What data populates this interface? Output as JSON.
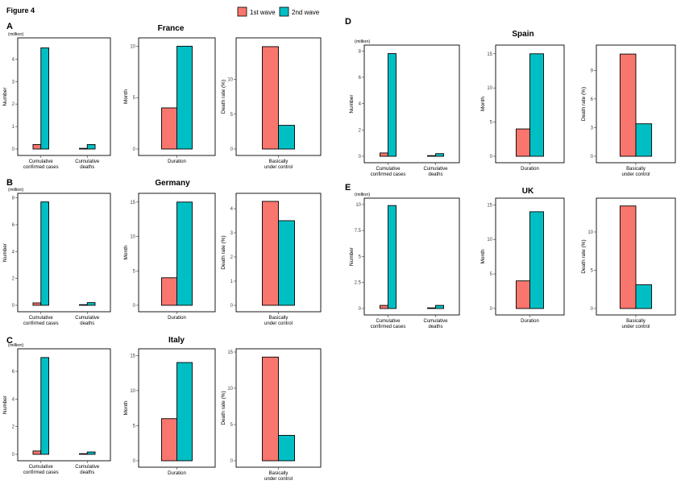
{
  "figure_title": "Figure 4",
  "legend": [
    {
      "label": "1st wave",
      "color": "#F8766D"
    },
    {
      "label": "2nd wave",
      "color": "#00BFC4"
    }
  ],
  "colors": {
    "wave1": "#F8766D",
    "wave2": "#00BFC4"
  },
  "chart_data": [
    {
      "panel": "A",
      "country": "France",
      "type": "bar",
      "unit": "(million)",
      "ylabel": "Number",
      "categories": [
        "Cumulative confirmed cases",
        "Cumulative deaths"
      ],
      "category_lines": [
        [
          "Cumulative",
          "confirmed cases"
        ],
        [
          "Cumulative",
          "deaths"
        ]
      ],
      "series": [
        {
          "name": "1st wave",
          "values": [
            0.2,
            0.03
          ]
        },
        {
          "name": "2nd wave",
          "values": [
            4.5,
            0.2
          ]
        }
      ],
      "ylim": [
        0,
        4.8
      ],
      "yticks": [
        "0",
        "1",
        "2",
        "3",
        "4"
      ]
    },
    {
      "panel": "A",
      "country": "France",
      "type": "bar",
      "ylabel": "Month",
      "categories": [
        "Duration"
      ],
      "category_lines": [
        [
          "Duration"
        ]
      ],
      "series": [
        {
          "name": "1st wave",
          "values": [
            4
          ]
        },
        {
          "name": "2nd wave",
          "values": [
            10
          ]
        }
      ],
      "ylim": [
        0,
        10.5
      ],
      "yticks": [
        "0",
        "5",
        "10"
      ]
    },
    {
      "panel": "A",
      "country": "France",
      "type": "bar",
      "ylabel": "Death rate (%)",
      "categories": [
        "Basically under control"
      ],
      "category_lines": [
        [
          "Basically",
          "under control"
        ]
      ],
      "series": [
        {
          "name": "1st wave",
          "values": [
            14.7
          ]
        },
        {
          "name": "2nd wave",
          "values": [
            3.4
          ]
        }
      ],
      "ylim": [
        0,
        15.5
      ],
      "yticks": [
        "0",
        "5",
        "10"
      ]
    },
    {
      "panel": "B",
      "country": "Germany",
      "type": "bar",
      "unit": "(million)",
      "ylabel": "Number",
      "categories": [
        "Cumulative confirmed cases",
        "Cumulative deaths"
      ],
      "category_lines": [
        [
          "Cumulative",
          "confirmed cases"
        ],
        [
          "Cumulative",
          "deaths"
        ]
      ],
      "series": [
        {
          "name": "1st wave",
          "values": [
            0.18,
            0.01
          ]
        },
        {
          "name": "2nd wave",
          "values": [
            7.7,
            0.2
          ]
        }
      ],
      "ylim": [
        0,
        8.1
      ],
      "yticks": [
        "0",
        "2",
        "4",
        "6",
        "8"
      ]
    },
    {
      "panel": "B",
      "country": "Germany",
      "type": "bar",
      "ylabel": "Month",
      "categories": [
        "Duration"
      ],
      "category_lines": [
        [
          "Duration"
        ]
      ],
      "series": [
        {
          "name": "1st wave",
          "values": [
            4
          ]
        },
        {
          "name": "2nd wave",
          "values": [
            15
          ]
        }
      ],
      "ylim": [
        0,
        15.8
      ],
      "yticks": [
        "0",
        "5",
        "10",
        "15"
      ]
    },
    {
      "panel": "B",
      "country": "Germany",
      "type": "bar",
      "ylabel": "Death rate (%)",
      "categories": [
        "Basically under control"
      ],
      "category_lines": [
        [
          "Basically",
          "under control"
        ]
      ],
      "series": [
        {
          "name": "1st wave",
          "values": [
            4.3
          ]
        },
        {
          "name": "2nd wave",
          "values": [
            3.5
          ]
        }
      ],
      "ylim": [
        0,
        4.5
      ],
      "yticks": [
        "0",
        "1",
        "2",
        "3",
        "4"
      ]
    },
    {
      "panel": "C",
      "country": "Italy",
      "type": "bar",
      "unit": "(million)",
      "ylabel": "Number",
      "categories": [
        "Cumulative confirmed cases",
        "Cumulative deaths"
      ],
      "category_lines": [
        [
          "Cumulative",
          "confirmed cases"
        ],
        [
          "Cumulative",
          "deaths"
        ]
      ],
      "series": [
        {
          "name": "1st wave",
          "values": [
            0.24,
            0.03
          ]
        },
        {
          "name": "2nd wave",
          "values": [
            7.0,
            0.17
          ]
        }
      ],
      "ylim": [
        0,
        7.4
      ],
      "yticks": [
        "0",
        "2",
        "4",
        "6"
      ]
    },
    {
      "panel": "C",
      "country": "Italy",
      "type": "bar",
      "ylabel": "Month",
      "categories": [
        "Duration"
      ],
      "category_lines": [
        [
          "Duration"
        ]
      ],
      "series": [
        {
          "name": "1st wave",
          "values": [
            6
          ]
        },
        {
          "name": "2nd wave",
          "values": [
            14
          ]
        }
      ],
      "ylim": [
        0,
        15.5
      ],
      "yticks": [
        "0",
        "5",
        "10",
        "15"
      ]
    },
    {
      "panel": "C",
      "country": "Italy",
      "type": "bar",
      "ylabel": "Death rate (%)",
      "categories": [
        "Basically under control"
      ],
      "category_lines": [
        [
          "Basically",
          "under control"
        ]
      ],
      "series": [
        {
          "name": "1st wave",
          "values": [
            14.3
          ]
        },
        {
          "name": "2nd wave",
          "values": [
            3.5
          ]
        }
      ],
      "ylim": [
        0,
        15
      ],
      "yticks": [
        "0",
        "5",
        "10",
        "15"
      ]
    },
    {
      "panel": "D",
      "country": "Spain",
      "type": "bar",
      "unit": "(million)",
      "ylabel": "Number",
      "categories": [
        "Cumulative confirmed cases",
        "Cumulative deaths"
      ],
      "category_lines": [
        [
          "Cumulative",
          "confirmed cases"
        ],
        [
          "Cumulative",
          "deaths"
        ]
      ],
      "series": [
        {
          "name": "1st wave",
          "values": [
            0.25,
            0.03
          ]
        },
        {
          "name": "2nd wave",
          "values": [
            7.8,
            0.2
          ]
        }
      ],
      "ylim": [
        0,
        8.2
      ],
      "yticks": [
        "0",
        "2",
        "4",
        "6",
        "8"
      ]
    },
    {
      "panel": "D",
      "country": "Spain",
      "type": "bar",
      "ylabel": "Month",
      "categories": [
        "Duration"
      ],
      "category_lines": [
        [
          "Duration"
        ]
      ],
      "series": [
        {
          "name": "1st wave",
          "values": [
            4
          ]
        },
        {
          "name": "2nd wave",
          "values": [
            15
          ]
        }
      ],
      "ylim": [
        0,
        15.8
      ],
      "yticks": [
        "0",
        "5",
        "10",
        "15"
      ]
    },
    {
      "panel": "D",
      "country": "Spain",
      "type": "bar",
      "ylabel": "Death rate (%)",
      "categories": [
        "Basically under control"
      ],
      "category_lines": [
        [
          "Basically",
          "under control"
        ]
      ],
      "series": [
        {
          "name": "1st wave",
          "values": [
            10.7
          ]
        },
        {
          "name": "2nd wave",
          "values": [
            3.4
          ]
        }
      ],
      "ylim": [
        0,
        11.3
      ],
      "yticks": [
        "0",
        "3",
        "6",
        "9"
      ]
    },
    {
      "panel": "E",
      "country": "UK",
      "type": "bar",
      "unit": "(million)",
      "ylabel": "Number",
      "categories": [
        "Cumulative confirmed cases",
        "Cumulative deaths"
      ],
      "category_lines": [
        [
          "Cumulative",
          "confirmed cases"
        ],
        [
          "Cumulative",
          "deaths"
        ]
      ],
      "series": [
        {
          "name": "1st wave",
          "values": [
            0.3,
            0.04
          ]
        },
        {
          "name": "2nd wave",
          "values": [
            9.9,
            0.3
          ]
        }
      ],
      "ylim": [
        0,
        10.3
      ],
      "yticks": [
        "0",
        "2.5",
        "5",
        "7.5",
        "10"
      ]
    },
    {
      "panel": "E",
      "country": "UK",
      "type": "bar",
      "ylabel": "Month",
      "categories": [
        "Duration"
      ],
      "category_lines": [
        [
          "Duration"
        ]
      ],
      "series": [
        {
          "name": "1st wave",
          "values": [
            4
          ]
        },
        {
          "name": "2nd wave",
          "values": [
            14
          ]
        }
      ],
      "ylim": [
        0,
        15.5
      ],
      "yticks": [
        "0",
        "5",
        "10",
        "15"
      ]
    },
    {
      "panel": "E",
      "country": "UK",
      "type": "bar",
      "ylabel": "Death rate (%)",
      "categories": [
        "Basically under control"
      ],
      "category_lines": [
        [
          "Basically",
          "under control"
        ]
      ],
      "series": [
        {
          "name": "1st wave",
          "values": [
            13.4
          ]
        },
        {
          "name": "2nd wave",
          "values": [
            3.1
          ]
        }
      ],
      "ylim": [
        0,
        14
      ],
      "yticks": [
        "0",
        "5",
        "10"
      ]
    }
  ]
}
